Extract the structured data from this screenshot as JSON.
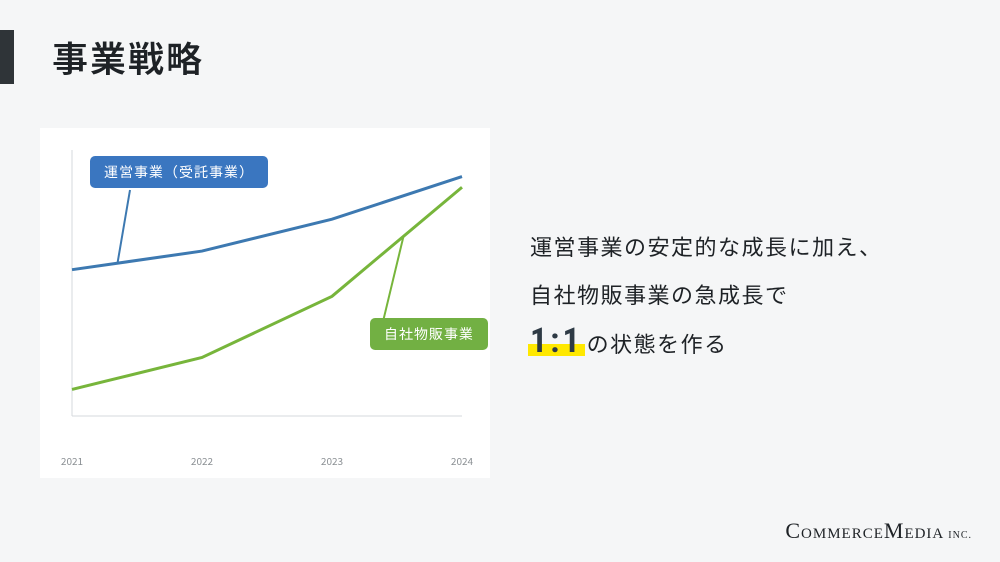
{
  "page_background": "#f5f6f7",
  "title": "事業戦略",
  "title_color": "#1e2226",
  "title_bar_color": "#2f3438",
  "chart": {
    "type": "line",
    "background": "#ffffff",
    "axis_color": "#d6d9dc",
    "xlim": [
      2021,
      2024
    ],
    "xtick_labels": [
      "2021",
      "2022",
      "2023",
      "2024"
    ],
    "xtick_positions": [
      2021,
      2022,
      2023,
      2024
    ],
    "xtick_fontsize": 10,
    "xtick_color": "#8a8f93",
    "ylim": [
      0,
      100
    ],
    "line_width": 3,
    "series": [
      {
        "id": "operations",
        "label": "運営事業（受託事業）",
        "color": "#3d79b1",
        "label_bg": "#3a76c0",
        "label_fg": "#ffffff",
        "x": [
          2021,
          2022,
          2023,
          2024
        ],
        "y": [
          55,
          62,
          74,
          90
        ]
      },
      {
        "id": "own_sales",
        "label": "自社物販事業",
        "color": "#77b53b",
        "label_bg": "#72b043",
        "label_fg": "#ffffff",
        "x": [
          2021,
          2022,
          2023,
          2024
        ],
        "y": [
          10,
          22,
          45,
          86
        ]
      }
    ]
  },
  "body": {
    "line1": "運営事業の安定的な成長に加え、",
    "line2": "自社物販事業の急成長で",
    "ratio_text": "1:1",
    "ratio_highlight": "#ffe800",
    "ratio_color": "#2e3a45",
    "line3_after": "の状態を作る",
    "fontsize": 22,
    "color": "#1e2226"
  },
  "logo": {
    "company_big1": "C",
    "company_rest1": "OMMERCE ",
    "company_big2": "M",
    "company_rest2": "EDIA",
    "suffix": "INC."
  }
}
